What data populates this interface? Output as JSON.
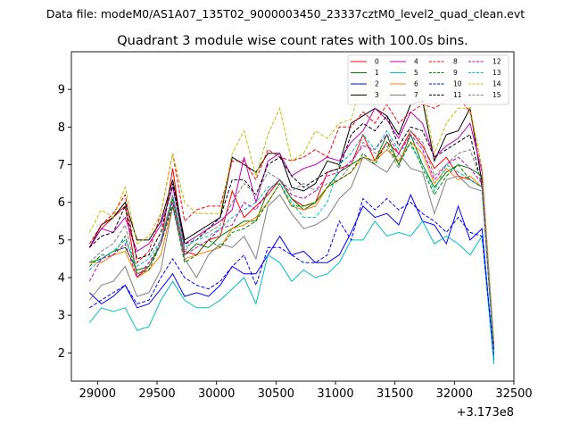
{
  "figure": {
    "suptitle": "Data file: modeM0/AS1A07_135T02_9000003450_23337cztM0_level2_quad_clean.evt",
    "title": "Quadrant 3 module wise count rates with 100.0s bins.",
    "offset_label": "+3.173e8"
  },
  "chart_data": {
    "type": "line",
    "title": "Quadrant 3 module wise count rates with 100.0s bins.",
    "xlabel": "",
    "ylabel": "",
    "x_offset": 317300000,
    "xlim": [
      28780,
      32500
    ],
    "ylim": [
      1.25,
      10.0
    ],
    "xticks": [
      29000,
      29500,
      30000,
      30500,
      31000,
      31500,
      32000,
      32500
    ],
    "yticks": [
      2,
      3,
      4,
      5,
      6,
      7,
      8,
      9
    ],
    "grid": false,
    "legend_position": "top-right",
    "x": [
      28932,
      29032,
      29132,
      29232,
      29332,
      29432,
      29532,
      29632,
      29732,
      29832,
      29932,
      30032,
      30132,
      30232,
      30332,
      30432,
      30532,
      30632,
      30732,
      30832,
      30932,
      31032,
      31132,
      31232,
      31332,
      31432,
      31532,
      31632,
      31732,
      31832,
      31932,
      32032,
      32132,
      32232,
      32332
    ],
    "series": [
      {
        "name": "0",
        "color": "#ff0000",
        "dash": "solid",
        "values": [
          4.8,
          5.3,
          5.6,
          5.9,
          4.0,
          4.3,
          4.9,
          6.9,
          4.7,
          4.6,
          5.0,
          5.1,
          6.3,
          5.6,
          5.9,
          6.2,
          6.6,
          6.1,
          5.9,
          6.0,
          6.8,
          6.9,
          7.0,
          7.8,
          7.1,
          7.6,
          7.3,
          7.9,
          7.5,
          6.9,
          7.2,
          6.7,
          6.6,
          6.4,
          2.2
        ]
      },
      {
        "name": "1",
        "color": "#008000",
        "dash": "solid",
        "values": [
          4.4,
          4.5,
          4.7,
          4.8,
          4.2,
          4.3,
          4.9,
          6.1,
          4.6,
          4.9,
          4.8,
          5.1,
          5.3,
          5.5,
          5.5,
          6.3,
          6.6,
          6.1,
          5.8,
          6.0,
          6.4,
          6.8,
          7.0,
          7.2,
          7.1,
          7.8,
          7.0,
          7.8,
          7.0,
          6.4,
          6.8,
          7.0,
          6.9,
          6.7,
          2.0
        ]
      },
      {
        "name": "2",
        "color": "#0000ff",
        "dash": "solid",
        "values": [
          3.6,
          3.3,
          3.5,
          3.8,
          3.2,
          3.3,
          3.7,
          4.1,
          3.5,
          3.6,
          3.5,
          3.8,
          4.3,
          4.1,
          4.1,
          4.6,
          5.1,
          4.6,
          4.7,
          4.4,
          4.4,
          4.6,
          5.2,
          5.9,
          5.6,
          5.7,
          5.4,
          6.2,
          5.5,
          5.4,
          4.9,
          5.9,
          5.0,
          5.3,
          1.8
        ]
      },
      {
        "name": "3",
        "color": "#000000",
        "dash": "solid",
        "values": [
          4.8,
          5.4,
          5.6,
          6.0,
          5.0,
          5.0,
          5.5,
          6.6,
          5.0,
          5.2,
          5.4,
          5.6,
          7.2,
          7.0,
          6.8,
          7.3,
          7.3,
          6.4,
          6.3,
          6.5,
          7.1,
          7.0,
          8.1,
          8.3,
          8.5,
          8.3,
          7.8,
          8.6,
          8.7,
          7.1,
          7.8,
          7.9,
          8.5,
          6.5,
          2.1
        ]
      },
      {
        "name": "4",
        "color": "#bf00bf",
        "dash": "solid",
        "values": [
          4.8,
          5.3,
          5.2,
          5.6,
          4.7,
          4.9,
          5.4,
          6.4,
          4.9,
          5.1,
          5.3,
          5.5,
          5.8,
          7.2,
          6.0,
          7.1,
          7.3,
          6.7,
          6.9,
          7.0,
          7.2,
          7.1,
          7.6,
          7.9,
          8.5,
          8.2,
          7.7,
          8.4,
          8.1,
          7.2,
          7.5,
          7.7,
          8.1,
          6.8,
          2.2
        ]
      },
      {
        "name": "5",
        "color": "#00bfbf",
        "dash": "solid",
        "values": [
          2.8,
          3.2,
          3.1,
          3.2,
          2.6,
          2.7,
          3.4,
          3.9,
          3.4,
          3.2,
          3.2,
          3.4,
          3.7,
          4.0,
          3.3,
          4.6,
          4.4,
          3.9,
          4.2,
          4.0,
          4.1,
          4.4,
          5.0,
          5.0,
          5.5,
          5.1,
          5.2,
          5.1,
          5.5,
          4.9,
          5.1,
          4.9,
          4.6,
          5.1,
          1.7
        ]
      },
      {
        "name": "6",
        "color": "#ff8000",
        "dash": "solid",
        "values": [
          4.4,
          4.4,
          4.6,
          4.7,
          4.0,
          4.2,
          4.6,
          5.9,
          4.5,
          4.6,
          4.7,
          4.8,
          5.3,
          5.4,
          5.6,
          6.0,
          6.5,
          5.9,
          5.8,
          5.9,
          6.4,
          6.6,
          6.8,
          7.2,
          7.1,
          7.4,
          7.1,
          7.6,
          7.3,
          6.5,
          6.9,
          6.6,
          6.7,
          6.4,
          2.0
        ]
      },
      {
        "name": "7",
        "color": "#808080",
        "dash": "solid",
        "values": [
          3.4,
          3.8,
          3.9,
          4.3,
          3.5,
          3.6,
          4.2,
          5.9,
          4.5,
          4.0,
          4.6,
          4.9,
          4.8,
          5.1,
          4.5,
          5.9,
          6.2,
          5.7,
          5.3,
          5.4,
          5.6,
          6.1,
          6.4,
          7.2,
          7.0,
          6.8,
          7.3,
          6.9,
          6.8,
          5.7,
          6.6,
          6.7,
          6.4,
          6.3,
          2.1
        ]
      },
      {
        "name": "8",
        "color": "#ff0000",
        "dash": "dashed",
        "values": [
          4.9,
          5.4,
          5.7,
          6.2,
          4.4,
          4.7,
          5.7,
          7.3,
          5.5,
          5.8,
          5.9,
          5.9,
          7.1,
          7.1,
          6.6,
          7.4,
          7.2,
          7.1,
          7.2,
          7.4,
          7.2,
          8.0,
          8.0,
          8.4,
          8.1,
          8.6,
          8.1,
          8.4,
          8.6,
          8.5,
          8.7,
          8.8,
          8.4,
          6.9,
          2.2
        ]
      },
      {
        "name": "9",
        "color": "#008000",
        "dash": "dashed",
        "values": [
          4.3,
          4.6,
          4.6,
          5.1,
          4.1,
          4.2,
          4.9,
          5.9,
          4.4,
          4.6,
          5.0,
          4.8,
          5.2,
          5.3,
          5.5,
          6.0,
          6.5,
          5.9,
          5.9,
          6.0,
          6.4,
          6.6,
          6.8,
          7.3,
          7.0,
          7.6,
          7.0,
          7.6,
          6.9,
          6.2,
          6.7,
          7.0,
          6.6,
          6.4,
          2.0
        ]
      },
      {
        "name": "10",
        "color": "#0000ff",
        "dash": "dashed",
        "values": [
          3.2,
          3.4,
          3.6,
          3.8,
          3.3,
          3.4,
          4.0,
          4.5,
          4.0,
          3.8,
          3.7,
          3.9,
          4.3,
          4.6,
          3.8,
          4.8,
          4.8,
          4.6,
          4.4,
          4.4,
          4.6,
          5.5,
          5.0,
          6.1,
          5.8,
          6.1,
          5.8,
          6.0,
          5.7,
          5.5,
          5.2,
          5.6,
          5.2,
          5.1,
          1.9
        ]
      },
      {
        "name": "11",
        "color": "#000000",
        "dash": "dashed",
        "values": [
          4.8,
          5.1,
          5.2,
          5.9,
          4.5,
          4.6,
          5.2,
          6.5,
          4.9,
          5.0,
          5.3,
          5.6,
          6.6,
          6.6,
          6.2,
          7.0,
          7.2,
          6.7,
          6.4,
          6.6,
          6.8,
          6.9,
          7.8,
          8.1,
          7.9,
          8.3,
          7.5,
          8.0,
          7.9,
          7.2,
          7.4,
          7.6,
          7.8,
          6.4,
          2.1
        ]
      },
      {
        "name": "12",
        "color": "#bf00bf",
        "dash": "dashed",
        "values": [
          3.9,
          4.5,
          4.6,
          4.9,
          4.0,
          4.4,
          4.9,
          6.0,
          4.6,
          4.8,
          5.0,
          5.3,
          5.4,
          6.0,
          5.8,
          6.3,
          6.6,
          6.2,
          6.1,
          6.3,
          6.7,
          6.8,
          7.1,
          7.5,
          7.4,
          7.8,
          7.3,
          7.8,
          7.4,
          6.6,
          7.0,
          7.2,
          6.9,
          6.5,
          2.1
        ]
      },
      {
        "name": "13",
        "color": "#00bfbf",
        "dash": "dashed",
        "values": [
          4.2,
          4.5,
          4.7,
          5.0,
          4.3,
          4.5,
          5.0,
          6.2,
          4.8,
          5.0,
          5.1,
          5.3,
          5.6,
          5.8,
          6.0,
          6.4,
          6.5,
          6.0,
          5.6,
          5.6,
          6.0,
          7.0,
          7.3,
          7.8,
          7.4,
          7.9,
          7.4,
          7.5,
          7.0,
          6.3,
          7.0,
          6.8,
          6.6,
          6.4,
          2.0
        ]
      },
      {
        "name": "14",
        "color": "#bfbf00",
        "dash": "dashed",
        "values": [
          5.2,
          5.8,
          5.6,
          6.4,
          4.9,
          5.1,
          5.7,
          7.3,
          6.0,
          5.7,
          5.7,
          5.7,
          7.3,
          7.9,
          6.7,
          7.8,
          8.5,
          7.1,
          7.3,
          7.9,
          7.7,
          8.1,
          8.2,
          9.3,
          9.0,
          8.6,
          9.6,
          9.2,
          8.9,
          7.3,
          8.1,
          8.5,
          8.5,
          6.9,
          2.3
        ]
      },
      {
        "name": "15",
        "color": "#808080",
        "dash": "dashed",
        "values": [
          4.4,
          4.7,
          4.9,
          5.4,
          4.1,
          4.3,
          5.0,
          6.2,
          4.7,
          5.1,
          5.2,
          5.4,
          6.0,
          6.5,
          6.2,
          6.8,
          6.6,
          6.3,
          6.5,
          6.3,
          6.5,
          6.6,
          7.0,
          7.6,
          7.3,
          7.5,
          6.9,
          7.9,
          7.6,
          6.7,
          7.0,
          7.3,
          7.4,
          6.5,
          2.2
        ]
      }
    ]
  }
}
